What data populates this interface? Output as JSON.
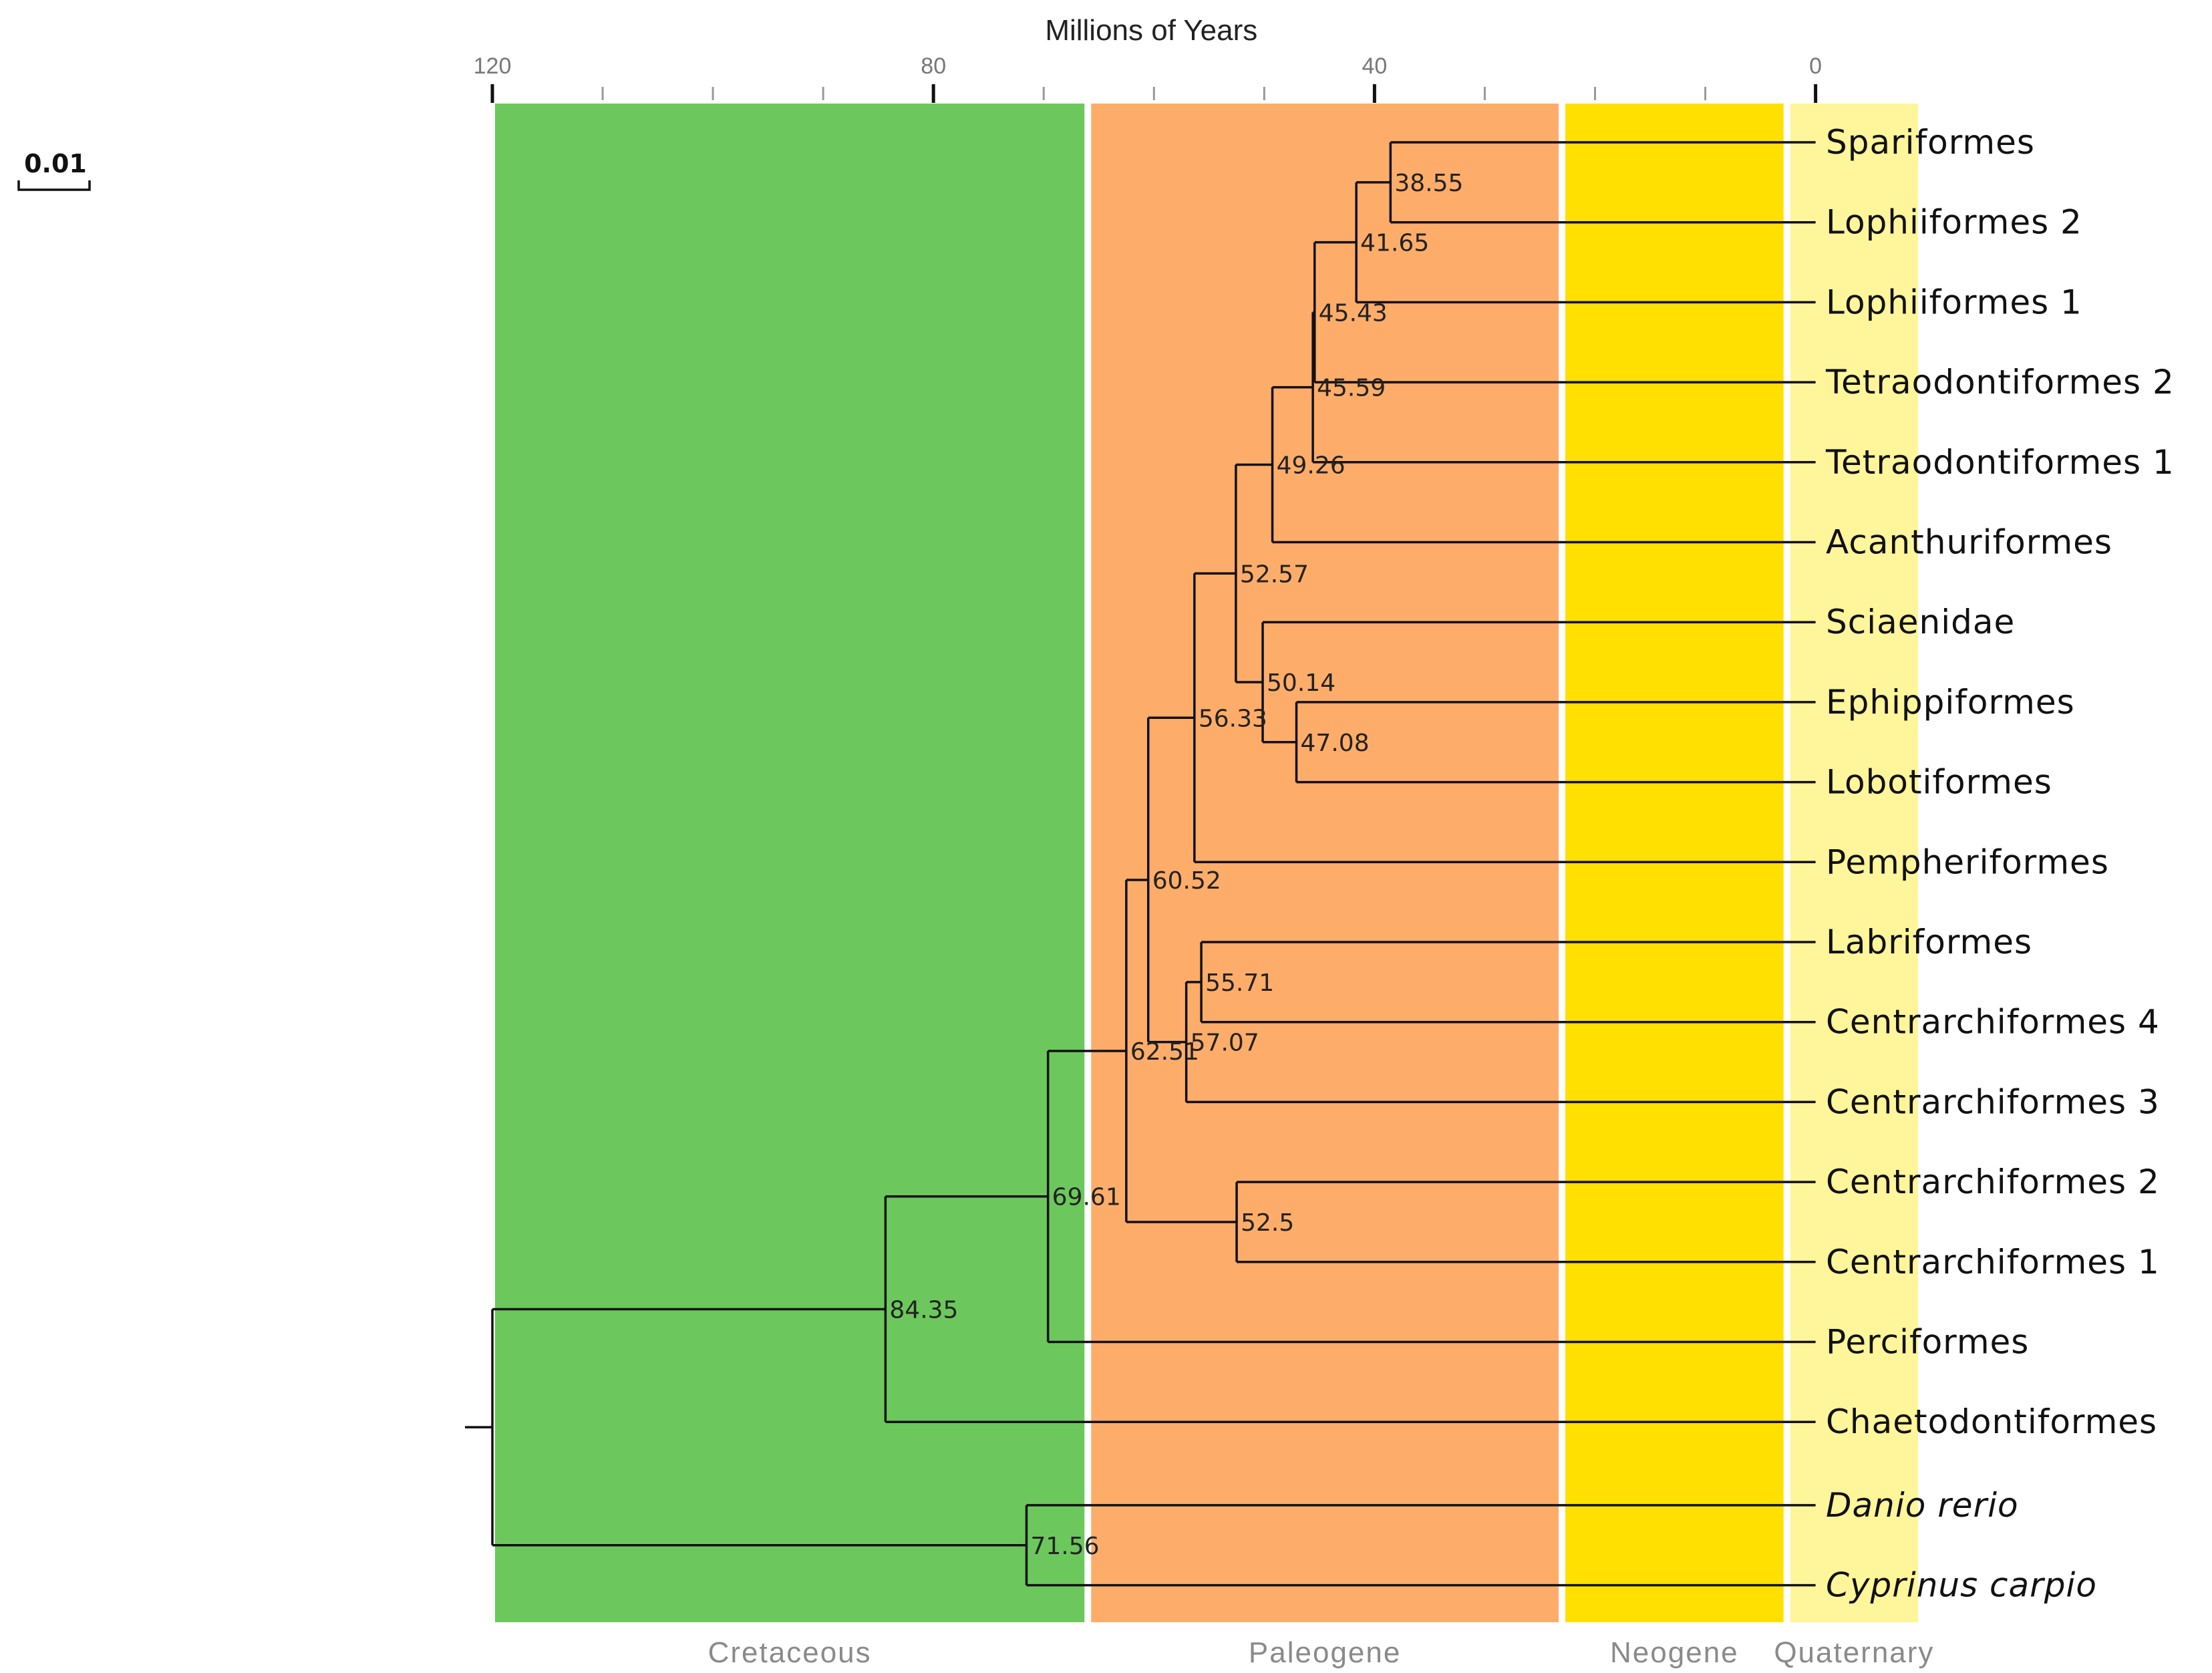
{
  "axis": {
    "title": "Millions of Years",
    "major_ticks": [
      {
        "value": 120,
        "label": "120"
      },
      {
        "value": 80,
        "label": "80"
      },
      {
        "value": 40,
        "label": "40"
      },
      {
        "value": 0,
        "label": "0"
      }
    ],
    "minor_ticks": [
      110,
      100,
      90,
      70,
      60,
      50,
      30,
      20,
      10
    ]
  },
  "scale_bar": {
    "label": "0.01"
  },
  "periods": [
    {
      "name": "Cretaceous",
      "from": 120,
      "to": 66,
      "color": "#6cc85c"
    },
    {
      "name": "Paleogene",
      "from": 66,
      "to": 23,
      "color": "#fdad69"
    },
    {
      "name": "Neogene",
      "from": 23,
      "to": 2.6,
      "color": "#ffe000"
    },
    {
      "name": "Quaternary",
      "from": 2.6,
      "to": -9.6,
      "color": "#fff59a"
    }
  ],
  "tree": {
    "leaves": [
      {
        "id": "L0",
        "label": "Spariformes",
        "italic": false
      },
      {
        "id": "L1",
        "label": "Lophiiformes 2",
        "italic": false
      },
      {
        "id": "L2",
        "label": "Lophiiformes 1",
        "italic": false
      },
      {
        "id": "L3",
        "label": "Tetraodontiformes 2",
        "italic": false
      },
      {
        "id": "L4",
        "label": "Tetraodontiformes 1",
        "italic": false
      },
      {
        "id": "L5",
        "label": "Acanthuriformes",
        "italic": false
      },
      {
        "id": "L6",
        "label": "Sciaenidae",
        "italic": false
      },
      {
        "id": "L7",
        "label": "Ephippiformes",
        "italic": false
      },
      {
        "id": "L8",
        "label": "Lobotiformes",
        "italic": false
      },
      {
        "id": "L9",
        "label": "Pempheriformes",
        "italic": false
      },
      {
        "id": "L10",
        "label": "Labriformes",
        "italic": false
      },
      {
        "id": "L11",
        "label": "Centrarchiformes 4",
        "italic": false
      },
      {
        "id": "L12",
        "label": "Centrarchiformes 3",
        "italic": false
      },
      {
        "id": "L13",
        "label": "Centrarchiformes 2",
        "italic": false
      },
      {
        "id": "L14",
        "label": "Centrarchiformes 1",
        "italic": false
      },
      {
        "id": "L15",
        "label": "Perciformes",
        "italic": false
      },
      {
        "id": "L16",
        "label": "Chaetodontiformes",
        "italic": false
      },
      {
        "id": "L17",
        "label": "Danio rerio",
        "italic": true
      },
      {
        "id": "L18",
        "label": "Cyprinus carpio",
        "italic": true
      }
    ],
    "nodes": [
      {
        "id": "n38_55",
        "age": 38.55,
        "label": "38.55",
        "children": [
          "L0",
          "L1"
        ]
      },
      {
        "id": "n41_65",
        "age": 41.65,
        "label": "41.65",
        "children": [
          "n38_55",
          "L2"
        ]
      },
      {
        "id": "n45_43",
        "age": 45.43,
        "label": "45.43",
        "children": [
          "n41_65",
          "L3"
        ]
      },
      {
        "id": "n45_59",
        "age": 45.59,
        "label": "45.59",
        "children": [
          "n45_43",
          "L4"
        ]
      },
      {
        "id": "n49_26",
        "age": 49.26,
        "label": "49.26",
        "children": [
          "n45_59",
          "L5"
        ]
      },
      {
        "id": "n47_08",
        "age": 47.08,
        "label": "47.08",
        "children": [
          "L7",
          "L8"
        ]
      },
      {
        "id": "n50_14",
        "age": 50.14,
        "label": "50.14",
        "children": [
          "L6",
          "n47_08"
        ]
      },
      {
        "id": "n52_57",
        "age": 52.57,
        "label": "52.57",
        "children": [
          "n49_26",
          "n50_14"
        ]
      },
      {
        "id": "n56_33",
        "age": 56.33,
        "label": "56.33",
        "children": [
          "n52_57",
          "L9"
        ]
      },
      {
        "id": "n55_71",
        "age": 55.71,
        "label": "55.71",
        "children": [
          "L10",
          "L11"
        ]
      },
      {
        "id": "n57_07",
        "age": 57.07,
        "label": "57.07",
        "children": [
          "n55_71",
          "L12"
        ]
      },
      {
        "id": "n60_52",
        "age": 60.52,
        "label": "60.52",
        "children": [
          "n56_33",
          "n57_07"
        ]
      },
      {
        "id": "n52_5",
        "age": 52.5,
        "label": "52.5",
        "children": [
          "L13",
          "L14"
        ]
      },
      {
        "id": "n62_51",
        "age": 62.51,
        "label": "62.51",
        "children": [
          "n60_52",
          "n52_5"
        ]
      },
      {
        "id": "n69_61",
        "age": 69.61,
        "label": "69.61",
        "children": [
          "n62_51",
          "L15"
        ]
      },
      {
        "id": "n84_35",
        "age": 84.35,
        "label": "84.35",
        "children": [
          "n69_61",
          "L16"
        ]
      },
      {
        "id": "n71_56",
        "age": 71.56,
        "label": "71.56",
        "children": [
          "L17",
          "L18"
        ]
      },
      {
        "id": "root",
        "age": 120,
        "label": "",
        "children": [
          "n84_35",
          "n71_56"
        ]
      }
    ]
  }
}
